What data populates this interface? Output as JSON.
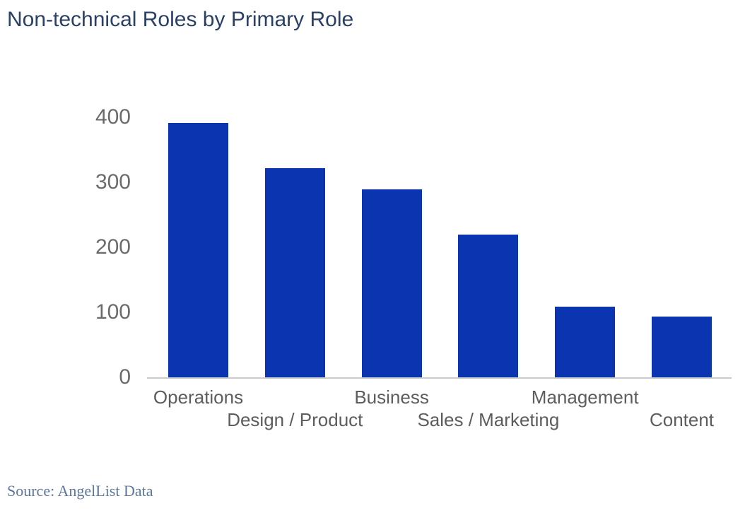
{
  "header": {
    "title": "Non-technical Roles by Primary Role"
  },
  "footer": {
    "source": "Source: AngelList Data"
  },
  "colors": {
    "bar": "#0b35b0",
    "title": "#2b4066",
    "tick_label": "#6b6b6b",
    "x_label": "#5c5d5f",
    "axis_line": "#cccccc",
    "source": "#5d789d",
    "background": "#ffffff"
  },
  "chart_data": {
    "type": "bar",
    "title": "Non-technical Roles by Primary Role",
    "categories": [
      "Operations",
      "Design / Product",
      "Business",
      "Sales / Marketing",
      "Management",
      "Content"
    ],
    "values": [
      391,
      322,
      289,
      220,
      109,
      93
    ],
    "xlabel": "",
    "ylabel": "",
    "ylim": [
      0,
      400
    ],
    "yticks": [
      0,
      100,
      200,
      300,
      400
    ],
    "grid": false,
    "legend": "none",
    "bar_color": "#0b35b0",
    "x_tick_label_layout": "staggered-two-rows",
    "source": "Source: AngelList Data"
  }
}
